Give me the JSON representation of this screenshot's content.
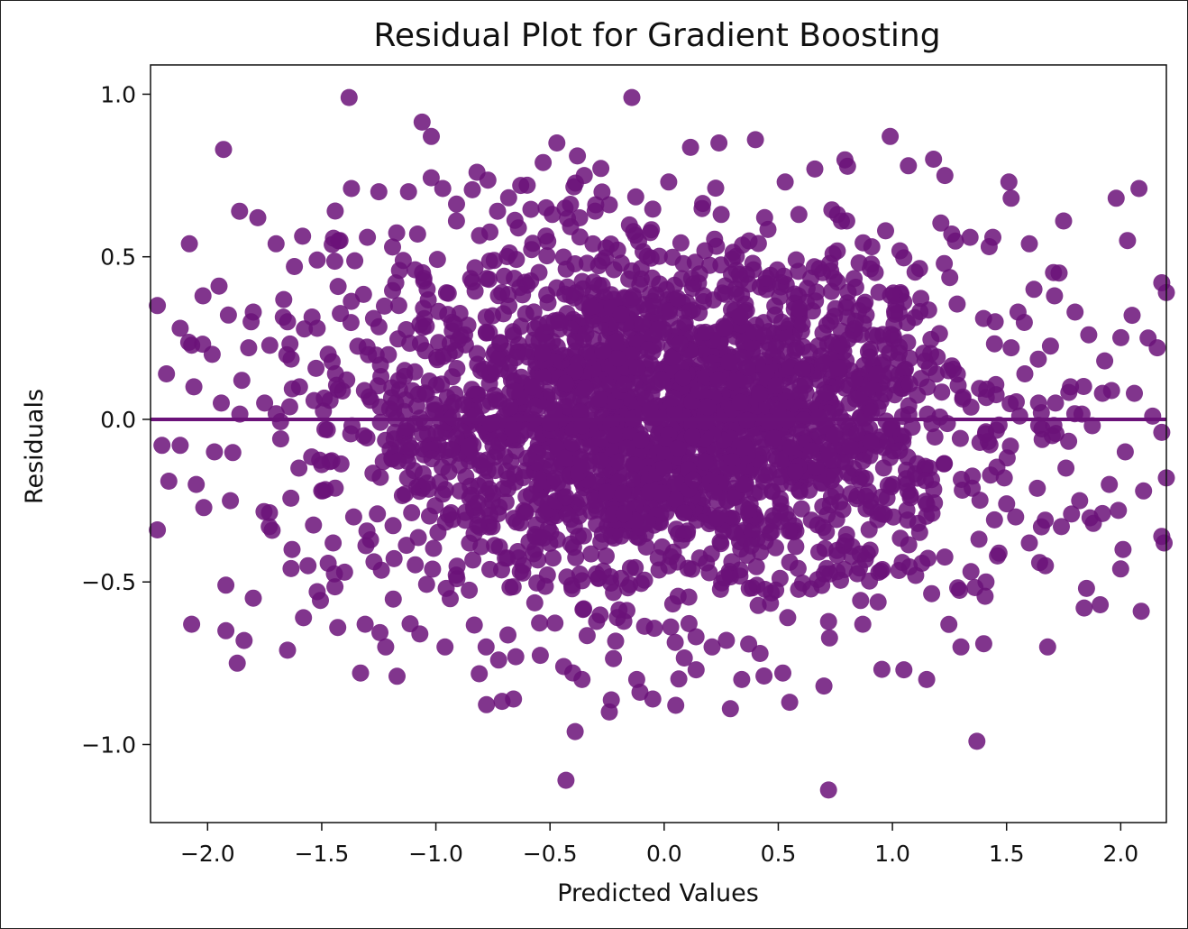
{
  "chart_data": {
    "type": "scatter",
    "title": "Residual Plot for Gradient Boosting",
    "xlabel": "Predicted Values",
    "ylabel": "Residuals",
    "xlim": [
      -2.25,
      2.2
    ],
    "ylim": [
      -1.24,
      1.09
    ],
    "xticks": [
      -2.0,
      -1.5,
      -1.0,
      -0.5,
      0.0,
      0.5,
      1.0,
      1.5,
      2.0
    ],
    "xtick_labels": [
      "−2.0",
      "−1.5",
      "−1.0",
      "−0.5",
      "0.0",
      "0.5",
      "1.0",
      "1.5",
      "2.0"
    ],
    "yticks": [
      -1.0,
      -0.5,
      0.0,
      0.5,
      1.0
    ],
    "ytick_labels": [
      "−1.0",
      "−0.5",
      "0.0",
      "0.5",
      "1.0"
    ],
    "point_color": "#6b1279",
    "reference_line": {
      "y": 0.0,
      "color": "#6b1279",
      "style": "solid"
    },
    "grid": false,
    "legend": "none",
    "points": [
      [
        -1.38,
        0.99
      ],
      [
        -1.02,
        0.87
      ],
      [
        -1.93,
        0.83
      ],
      [
        0.24,
        0.85
      ],
      [
        0.4,
        0.86
      ],
      [
        0.99,
        0.87
      ],
      [
        -0.47,
        0.85
      ],
      [
        -0.38,
        0.81
      ],
      [
        -0.53,
        0.79
      ],
      [
        -0.35,
        0.75
      ],
      [
        -0.82,
        0.76
      ],
      [
        0.53,
        0.73
      ],
      [
        0.66,
        0.77
      ],
      [
        1.07,
        0.78
      ],
      [
        1.18,
        0.8
      ],
      [
        1.23,
        0.75
      ],
      [
        1.51,
        0.73
      ],
      [
        2.08,
        0.71
      ],
      [
        -1.37,
        0.71
      ],
      [
        -1.25,
        0.7
      ],
      [
        -0.97,
        0.71
      ],
      [
        -1.12,
        0.7
      ],
      [
        0.02,
        0.73
      ],
      [
        1.98,
        0.68
      ],
      [
        -1.86,
        0.64
      ],
      [
        -1.78,
        0.62
      ],
      [
        -1.7,
        0.54
      ],
      [
        -2.08,
        0.54
      ],
      [
        -1.62,
        0.47
      ],
      [
        1.75,
        0.61
      ],
      [
        2.03,
        0.55
      ],
      [
        -1.52,
        0.49
      ],
      [
        -1.42,
        0.55
      ],
      [
        1.52,
        0.68
      ],
      [
        -0.3,
        0.66
      ],
      [
        -0.6,
        0.72
      ],
      [
        -2.22,
        0.35
      ],
      [
        -2.18,
        0.14
      ],
      [
        -2.2,
        -0.08
      ],
      [
        -2.22,
        -0.34
      ],
      [
        -2.17,
        -0.19
      ],
      [
        -2.12,
        -0.08
      ],
      [
        -2.07,
        -0.63
      ],
      [
        -1.92,
        -0.65
      ],
      [
        -1.87,
        -0.75
      ],
      [
        -1.84,
        -0.68
      ],
      [
        -1.92,
        -0.51
      ],
      [
        -1.8,
        -0.55
      ],
      [
        -1.65,
        -0.71
      ],
      [
        -1.58,
        -0.61
      ],
      [
        -1.52,
        -0.53
      ],
      [
        -1.43,
        -0.64
      ],
      [
        -1.33,
        -0.78
      ],
      [
        -1.31,
        -0.63
      ],
      [
        -1.22,
        -0.7
      ],
      [
        -1.17,
        -0.79
      ],
      [
        -1.07,
        -0.66
      ],
      [
        -0.96,
        -0.7
      ],
      [
        -0.78,
        -0.7
      ],
      [
        -0.66,
        -0.86
      ],
      [
        -0.65,
        -0.73
      ],
      [
        -0.44,
        -0.76
      ],
      [
        -0.43,
        -1.11
      ],
      [
        -0.39,
        -0.96
      ],
      [
        -0.36,
        -0.8
      ],
      [
        -0.24,
        -0.9
      ],
      [
        -0.12,
        -0.8
      ],
      [
        -0.05,
        -0.86
      ],
      [
        0.14,
        -0.77
      ],
      [
        0.21,
        -0.7
      ],
      [
        0.29,
        -0.89
      ],
      [
        0.34,
        -0.8
      ],
      [
        0.42,
        -0.72
      ],
      [
        0.52,
        -0.78
      ],
      [
        0.55,
        -0.87
      ],
      [
        0.7,
        -0.82
      ],
      [
        0.72,
        -1.14
      ],
      [
        0.87,
        -0.63
      ],
      [
        1.05,
        -0.77
      ],
      [
        1.15,
        -0.8
      ],
      [
        1.3,
        -0.7
      ],
      [
        1.37,
        -0.99
      ],
      [
        1.4,
        -0.69
      ],
      [
        1.68,
        -0.7
      ],
      [
        2.09,
        -0.59
      ],
      [
        1.84,
        -0.58
      ],
      [
        1.91,
        -0.57
      ],
      [
        1.85,
        -0.52
      ],
      [
        2.01,
        -0.4
      ],
      [
        2.0,
        -0.46
      ],
      [
        2.19,
        -0.38
      ],
      [
        2.18,
        -0.36
      ],
      [
        2.18,
        0.42
      ],
      [
        2.2,
        0.39
      ],
      [
        2.16,
        0.22
      ],
      [
        2.14,
        0.01
      ],
      [
        2.2,
        -0.18
      ],
      [
        2.18,
        -0.04
      ],
      [
        1.73,
        0.45
      ],
      [
        1.6,
        0.54
      ],
      [
        1.44,
        0.56
      ],
      [
        1.34,
        0.56
      ],
      [
        1.26,
        0.57
      ],
      [
        0.97,
        0.58
      ],
      [
        0.8,
        0.61
      ],
      [
        0.59,
        0.63
      ],
      [
        0.25,
        0.63
      ],
      [
        -0.24,
        0.66
      ],
      [
        -0.49,
        0.63
      ],
      [
        -0.73,
        0.64
      ],
      [
        -0.91,
        0.61
      ],
      [
        -1.08,
        0.57
      ],
      [
        -1.19,
        0.53
      ],
      [
        -1.3,
        0.56
      ],
      [
        -1.52,
        0.28
      ],
      [
        -1.65,
        0.3
      ],
      [
        -1.8,
        0.33
      ],
      [
        -1.95,
        0.41
      ],
      [
        -2.02,
        0.38
      ],
      [
        -2.12,
        0.28
      ],
      [
        -1.98,
        0.2
      ],
      [
        -1.85,
        0.12
      ],
      [
        -1.75,
        0.05
      ],
      [
        -1.68,
        -0.06
      ],
      [
        -1.6,
        -0.15
      ],
      [
        -1.5,
        -0.22
      ],
      [
        -1.9,
        -0.25
      ],
      [
        -1.97,
        -0.1
      ],
      [
        -2.05,
        -0.2
      ],
      [
        -1.73,
        -0.33
      ],
      [
        -1.63,
        -0.4
      ],
      [
        -1.56,
        -0.45
      ],
      [
        -1.45,
        -0.38
      ],
      [
        -1.4,
        -0.47
      ],
      [
        -1.36,
        -0.3
      ],
      [
        -1.94,
        0.05
      ],
      [
        -2.06,
        0.1
      ],
      [
        -1.82,
        0.22
      ],
      [
        1.45,
        0.3
      ],
      [
        1.52,
        0.22
      ],
      [
        1.58,
        0.14
      ],
      [
        1.64,
        0.05
      ],
      [
        1.7,
        -0.05
      ],
      [
        1.76,
        -0.15
      ],
      [
        1.82,
        -0.25
      ],
      [
        1.88,
        -0.32
      ],
      [
        1.95,
        -0.2
      ],
      [
        2.02,
        -0.1
      ],
      [
        2.06,
        0.08
      ],
      [
        1.93,
        0.18
      ],
      [
        1.86,
        0.26
      ],
      [
        1.8,
        0.33
      ],
      [
        1.71,
        0.38
      ],
      [
        1.62,
        0.4
      ],
      [
        1.55,
        0.33
      ],
      [
        1.49,
        -0.18
      ],
      [
        1.54,
        -0.3
      ],
      [
        1.6,
        -0.38
      ],
      [
        1.67,
        -0.45
      ],
      [
        1.74,
        -0.33
      ],
      [
        1.46,
        -0.42
      ],
      [
        1.41,
        -0.5
      ],
      [
        2.1,
        -0.22
      ],
      [
        2.12,
        0.25
      ],
      [
        2.05,
        0.32
      ],
      [
        1.99,
        -0.28
      ],
      [
        1.92,
        0.08
      ],
      [
        1.78,
        0.1
      ]
    ],
    "dense_band": {
      "description_values_only": "procedurally generated cloud",
      "x_center": 0.0,
      "x_spread": 1.25,
      "y_spread": 0.26,
      "count": 2600
    }
  }
}
